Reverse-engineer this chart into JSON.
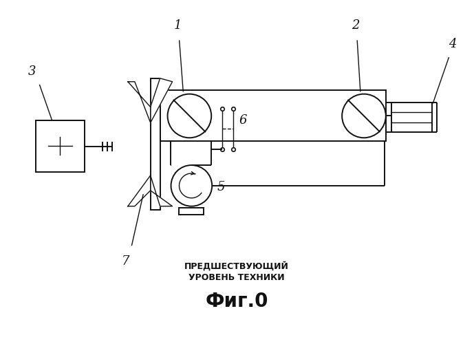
{
  "bg_color": "#ffffff",
  "line_color": "#111111",
  "lw_main": 1.4,
  "lw_thin": 1.0,
  "fig_width": 6.89,
  "fig_height": 5.0,
  "title_line1": "ПРЕДШЕСТВУЮЩИЙ",
  "title_line2": "УРОВЕНЬ ТЕХНИКИ",
  "fig_label": "Фиг.0"
}
